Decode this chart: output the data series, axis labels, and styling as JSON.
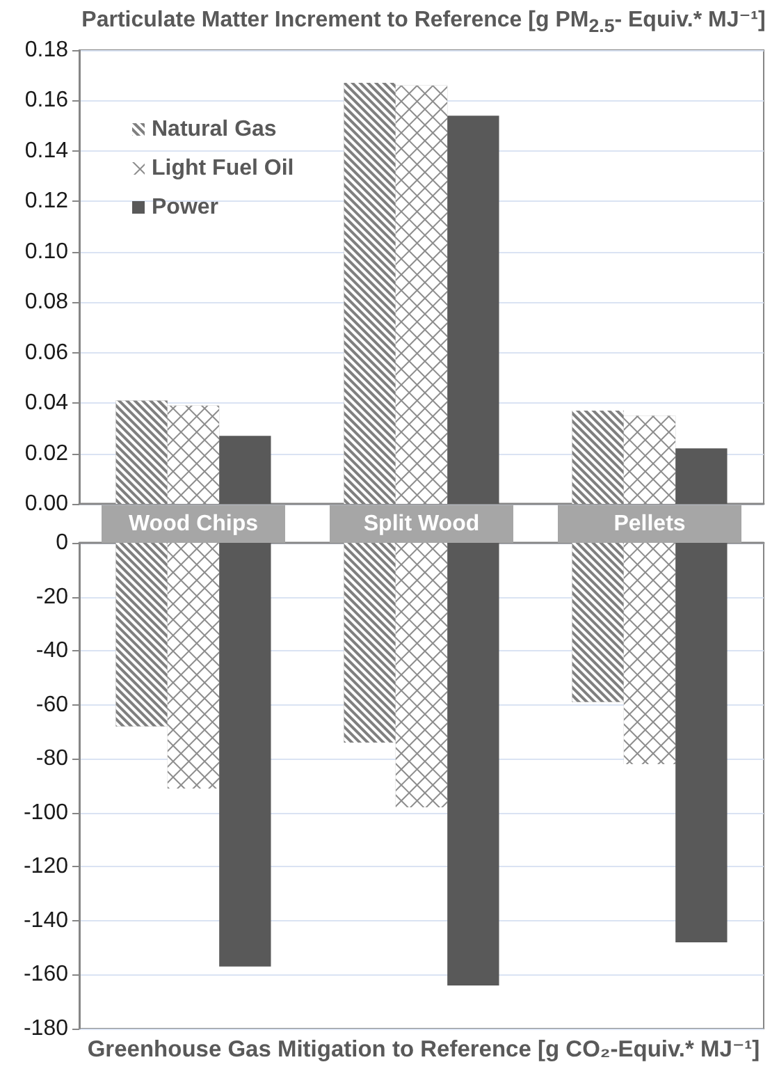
{
  "chart_data": [
    {
      "type": "bar",
      "title": "Particulate Matter Increment to Reference [g PM$_{2.5}$- Equiv.* MJ⁻¹]",
      "categories": [
        "Wood Chips",
        "Split Wood",
        "Pellets"
      ],
      "series": [
        {
          "name": "Natural Gas",
          "color": "#7f7f7f",
          "values": [
            0.041,
            0.167,
            0.037
          ]
        },
        {
          "name": "Light Fuel Oil",
          "color": "#8c8c8c",
          "values": [
            0.039,
            0.166,
            0.035
          ]
        },
        {
          "name": "Power",
          "color": "#595959",
          "values": [
            0.027,
            0.154,
            0.022
          ]
        }
      ],
      "ylim": [
        0,
        0.18
      ],
      "yticks": [
        {
          "value": 0,
          "label": "0.00"
        },
        {
          "value": 0.02,
          "label": "0.02"
        },
        {
          "value": 0.04,
          "label": "0.04"
        },
        {
          "value": 0.06,
          "label": "0.06"
        },
        {
          "value": 0.08,
          "label": "0.08"
        },
        {
          "value": 0.1,
          "label": "0.10"
        },
        {
          "value": 0.12,
          "label": "0.12"
        },
        {
          "value": 0.14,
          "label": "0.14"
        },
        {
          "value": 0.16,
          "label": "0.16"
        },
        {
          "value": 0.18,
          "label": "0.18"
        }
      ],
      "grid": "y",
      "legend": "top left"
    },
    {
      "type": "bar",
      "xlabel": "Greenhouse Gas Mitigation to Reference [g CO₂-Equiv.* MJ⁻¹]",
      "categories": [
        null,
        null,
        null
      ],
      "series": [
        {
          "color": "#7f7f7f",
          "values": [
            -68,
            -74,
            -59
          ]
        },
        {
          "color": "#8c8c8c",
          "values": [
            -91,
            -98,
            -82
          ]
        },
        {
          "color": "#595959",
          "values": [
            -157,
            -164,
            -148
          ]
        }
      ],
      "ylim": [
        -180,
        0
      ],
      "yticks": [
        -180,
        -160,
        -140,
        -120,
        -100,
        -80,
        -60,
        -40,
        -20,
        0
      ],
      "grid": "y",
      "tick_labels": "y"
    }
  ]
}
